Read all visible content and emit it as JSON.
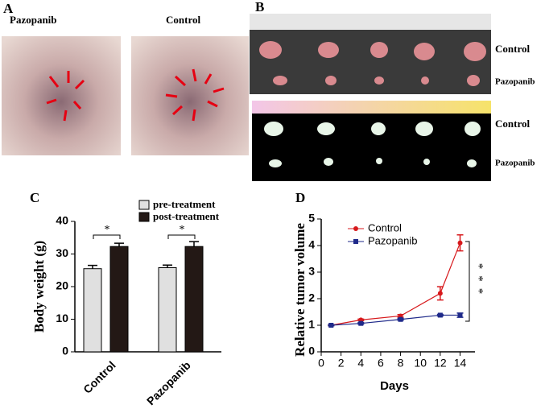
{
  "panels": {
    "A": {
      "label": "A",
      "left": "Pazopanib",
      "right": "Control"
    },
    "B": {
      "label": "B",
      "rows": [
        "Control",
        "Pazopanib",
        "Control",
        "Pazopanib"
      ]
    }
  },
  "chart_data": [
    {
      "type": "bar",
      "panel": "C",
      "ylabel": "Body weight (g)",
      "categories": [
        "Control",
        "Pazopanib"
      ],
      "series": [
        {
          "name": "pre-treatment",
          "color": "#e0e0e0",
          "values": [
            25.5,
            25.8
          ],
          "errors": [
            1,
            0.8
          ]
        },
        {
          "name": "post-treatment",
          "color": "#231815",
          "values": [
            32.3,
            32.3
          ],
          "errors": [
            1,
            1.5
          ]
        }
      ],
      "ylim": [
        0,
        40
      ],
      "yticks": [
        0,
        10,
        20,
        30,
        40
      ],
      "annotations": [
        "*",
        "*"
      ]
    },
    {
      "type": "line",
      "panel": "D",
      "xlabel": "Days",
      "ylabel": "Relative tumor volume",
      "x": [
        1,
        4,
        8,
        12,
        14
      ],
      "series": [
        {
          "name": "Control",
          "color": "#d7191c",
          "marker": "circle",
          "values": [
            1,
            1.2,
            1.35,
            2.2,
            4.1
          ],
          "errors": [
            0.02,
            0.03,
            0.05,
            0.25,
            0.3
          ]
        },
        {
          "name": "Pazopanib",
          "color": "#1f2a8a",
          "marker": "square",
          "values": [
            1,
            1.07,
            1.22,
            1.38,
            1.38
          ],
          "errors": [
            0.02,
            0.03,
            0.03,
            0.03,
            0.08
          ]
        }
      ],
      "xlim": [
        0,
        15.5
      ],
      "xticks": [
        0,
        2,
        4,
        6,
        8,
        10,
        12,
        14
      ],
      "ylim": [
        0,
        5
      ],
      "yticks": [
        0,
        1,
        2,
        3,
        4,
        5
      ],
      "annotation": "***"
    }
  ]
}
